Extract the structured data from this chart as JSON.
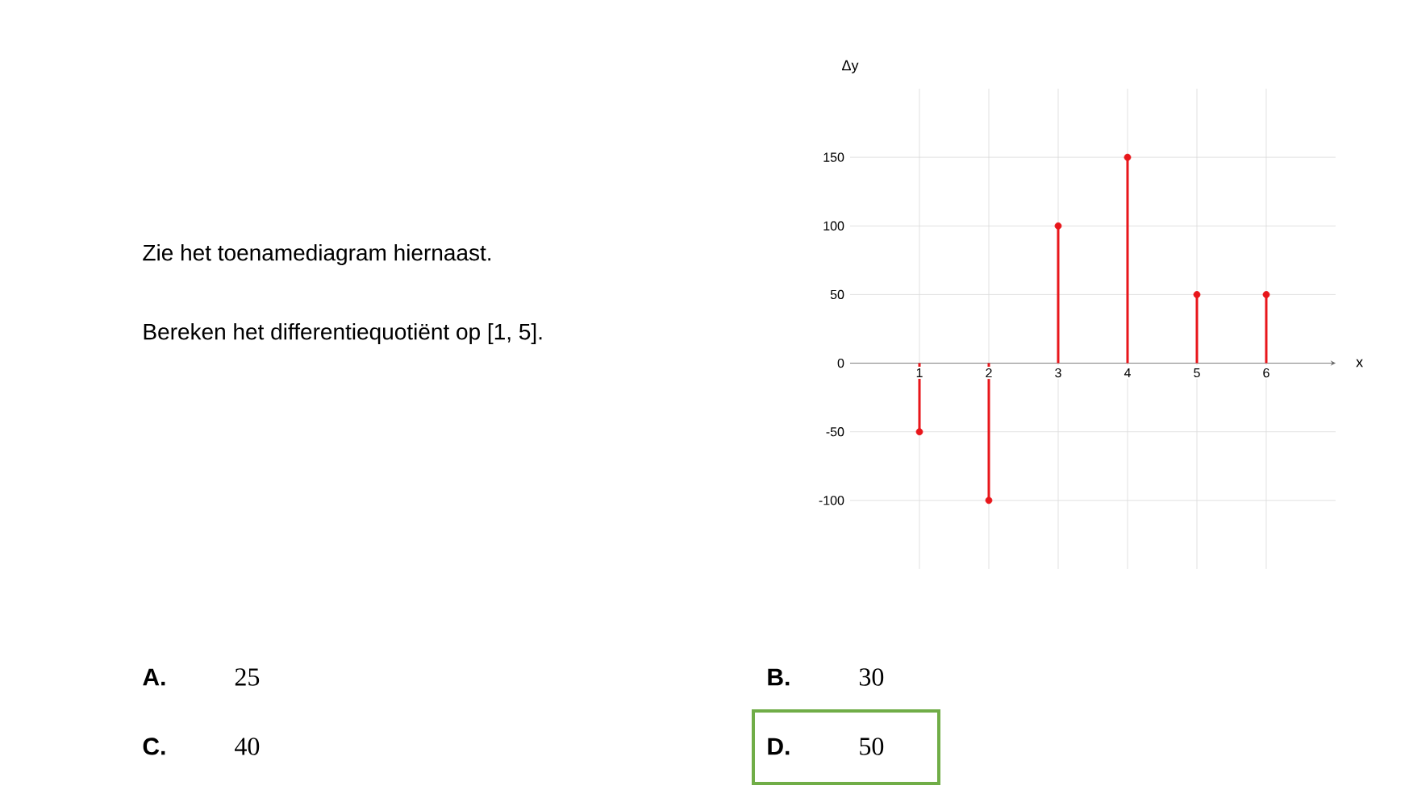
{
  "chart_data": {
    "type": "lollipop",
    "xlabel": "x",
    "ylabel": "Δy",
    "x": [
      1,
      2,
      3,
      4,
      5,
      6
    ],
    "values": [
      -50,
      -100,
      100,
      150,
      50,
      50
    ],
    "color": "#e8161b",
    "marker": "circle",
    "xlim": [
      0,
      7
    ],
    "xticks": [
      1,
      2,
      3,
      4,
      5,
      6
    ],
    "ylim": [
      -150,
      200
    ],
    "yticks": [
      -100,
      -50,
      0,
      50,
      100,
      150
    ],
    "grid": true,
    "annotations": [
      "Zie het toenamediagram hiernaast.",
      "Bereken het differentiequotiënt op [1, 5].",
      "A.",
      "25",
      "B.",
      "30",
      "C.",
      "40",
      "D.",
      "50"
    ]
  }
}
